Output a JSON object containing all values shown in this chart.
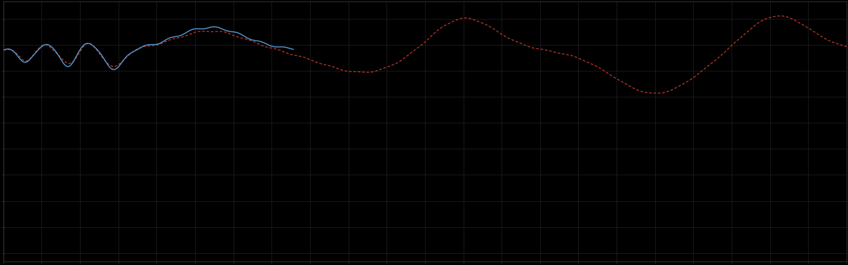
{
  "background_color": "#000000",
  "plot_bg_color": "#000000",
  "grid_color": "#2a2a2a",
  "line1_color": "#5b9bd5",
  "line2_color": "#c0392b",
  "axis_color": "#444444",
  "tick_color": "#444444",
  "figsize": [
    12.09,
    3.78
  ],
  "dpi": 100,
  "xlim": [
    0,
    110
  ],
  "ylim": [
    -5,
    10
  ],
  "grid_major_x": 5,
  "grid_major_y": 1,
  "grid_alpha": 1.0,
  "grid_linewidth": 0.4
}
